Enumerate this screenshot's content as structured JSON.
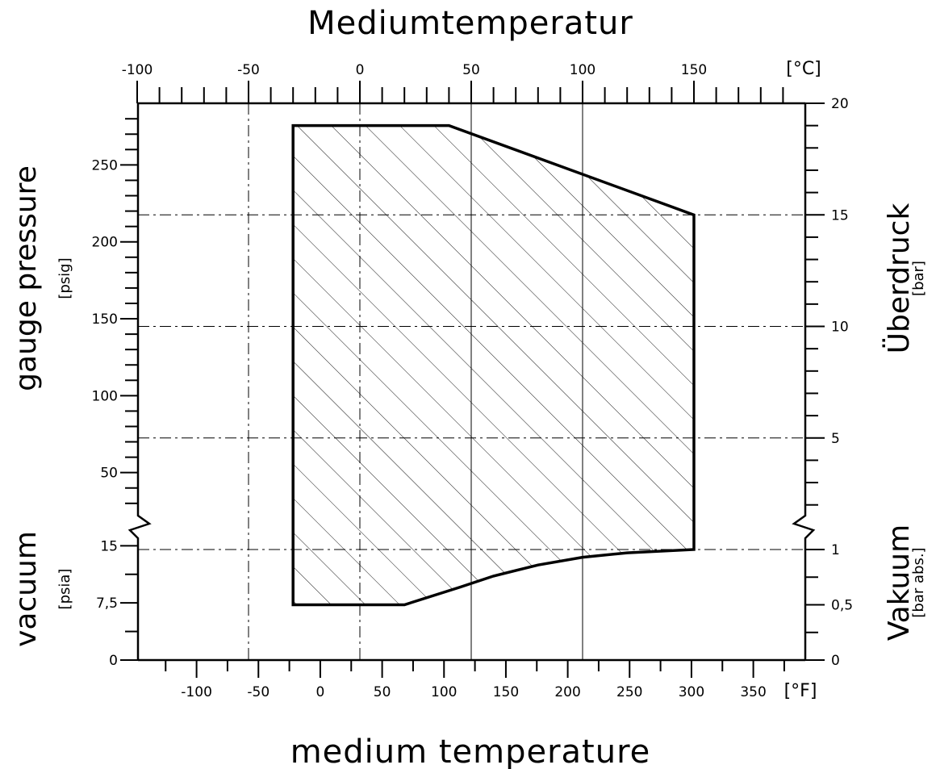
{
  "chart_data": {
    "type": "area",
    "title": "Mediumtemperatur",
    "xlabel": "medium temperature",
    "x_top": {
      "unit": "[°C]",
      "ticks": [
        -100,
        -50,
        0,
        50,
        100,
        150
      ],
      "tick_labels": [
        "-100",
        "-50",
        "0",
        "50",
        "100",
        "150"
      ]
    },
    "x_bottom": {
      "unit": "[°F]",
      "ticks": [
        -100,
        -50,
        0,
        50,
        100,
        150,
        200,
        250,
        300,
        350
      ],
      "tick_labels": [
        "-100",
        "-50",
        "0",
        "50",
        "100",
        "150",
        "200",
        "250",
        "300",
        "350"
      ]
    },
    "y_left": {
      "label_pressure": "gauge pressure",
      "unit_pressure": "[psig]",
      "label_vacuum": "vacuum",
      "unit_vacuum": "[psia]",
      "pressure_ticks": [
        50,
        100,
        150,
        200,
        250
      ],
      "pressure_tick_labels": [
        "50",
        "100",
        "150",
        "200",
        "250"
      ],
      "vacuum_ticks": [
        0,
        7.5,
        15
      ],
      "vacuum_tick_labels": [
        "0",
        "7,5",
        "15"
      ]
    },
    "y_right": {
      "label_pressure": "Überdruck",
      "unit_pressure": "[bar]",
      "label_vacuum": "Vakuum",
      "unit_vacuum": "[bar abs.]",
      "pressure_ticks": [
        5,
        10,
        15,
        20
      ],
      "pressure_tick_labels": [
        "5",
        "10",
        "15",
        "20"
      ],
      "vacuum_ticks": [
        0,
        0.5,
        1
      ],
      "vacuum_tick_labels": [
        "0",
        "0,5",
        "1"
      ]
    },
    "operating_range": {
      "series": [
        {
          "pressure_region_bar_g": [
            {
              "t_c": -30,
              "p_bar": 19
            },
            {
              "t_c": 40,
              "p_bar": 19
            },
            {
              "t_c": 150,
              "p_bar": 15
            },
            {
              "t_c": 150,
              "p_bar": 0
            }
          ],
          "vacuum_region_bar_abs": [
            {
              "t_c": 150,
              "p_abs": 1.0
            },
            {
              "t_c": 120,
              "p_abs": 0.97
            },
            {
              "t_c": 100,
              "p_abs": 0.93
            },
            {
              "t_c": 80,
              "p_abs": 0.86
            },
            {
              "t_c": 60,
              "p_abs": 0.76
            },
            {
              "t_c": 45,
              "p_abs": 0.66
            },
            {
              "t_c": 20,
              "p_abs": 0.5
            },
            {
              "t_c": -30,
              "p_abs": 0.5
            }
          ]
        }
      ],
      "fill": "diagonal hatching"
    },
    "grid": "dash-dot reference lines",
    "colors": {
      "line": "#000000",
      "background": "#ffffff"
    }
  }
}
